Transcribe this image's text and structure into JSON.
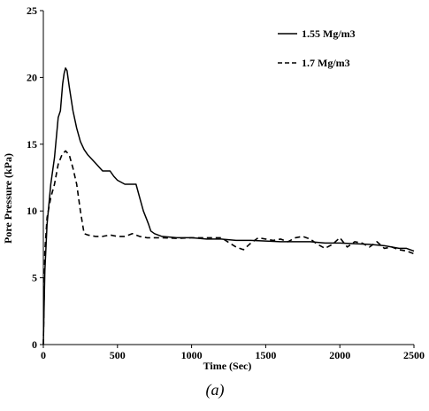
{
  "chart_data": {
    "type": "line",
    "title": "",
    "xlabel": "Time (Sec)",
    "ylabel": "Pore Pressure (kPa)",
    "xlim": [
      0,
      2500
    ],
    "ylim": [
      0,
      25
    ],
    "xticks": [
      0,
      500,
      1000,
      1500,
      2000,
      2500
    ],
    "yticks": [
      0,
      5,
      10,
      15,
      20,
      25
    ],
    "grid": false,
    "legend_position": "top-right",
    "caption": "(a)",
    "series": [
      {
        "name": "1.55 Mg/m3",
        "line_style": "solid",
        "color": "#000000",
        "x": [
          0,
          10,
          25,
          50,
          75,
          100,
          115,
          130,
          140,
          150,
          160,
          175,
          200,
          225,
          250,
          275,
          300,
          350,
          400,
          450,
          475,
          500,
          550,
          600,
          625,
          650,
          675,
          700,
          710,
          725,
          750,
          800,
          850,
          900,
          1000,
          1100,
          1200,
          1300,
          1400,
          1500,
          1600,
          1700,
          1800,
          1900,
          2000,
          2100,
          2200,
          2300,
          2350,
          2400,
          2450,
          2500
        ],
        "y": [
          0,
          5.5,
          9,
          12,
          14,
          17,
          17.5,
          19.5,
          20.3,
          20.7,
          20.5,
          19.3,
          17.5,
          16.2,
          15.2,
          14.6,
          14.2,
          13.6,
          13,
          13,
          12.6,
          12.3,
          12,
          12,
          12,
          11,
          10,
          9.3,
          9,
          8.5,
          8.3,
          8.1,
          8.05,
          8,
          8,
          7.9,
          7.9,
          7.8,
          7.8,
          7.75,
          7.7,
          7.7,
          7.7,
          7.6,
          7.6,
          7.55,
          7.5,
          7.4,
          7.3,
          7.2,
          7.2,
          7
        ]
      },
      {
        "name": "1.7 Mg/m3",
        "line_style": "dashed",
        "color": "#000000",
        "x": [
          0,
          10,
          25,
          50,
          75,
          100,
          125,
          150,
          175,
          200,
          225,
          250,
          275,
          300,
          350,
          400,
          450,
          500,
          550,
          600,
          650,
          700,
          750,
          800,
          900,
          1000,
          1100,
          1200,
          1300,
          1350,
          1400,
          1450,
          1500,
          1550,
          1600,
          1650,
          1700,
          1750,
          1800,
          1850,
          1900,
          1950,
          2000,
          2050,
          2100,
          2150,
          2200,
          2250,
          2300,
          2350,
          2400,
          2450,
          2500
        ],
        "y": [
          0,
          7,
          9.5,
          11,
          12,
          13.5,
          14.2,
          14.5,
          14.2,
          13.2,
          12,
          10,
          8.3,
          8.2,
          8.1,
          8.1,
          8.2,
          8.1,
          8.1,
          8.3,
          8.1,
          8,
          8,
          8,
          7.95,
          8,
          8,
          8,
          7.3,
          7.1,
          7.6,
          8,
          7.9,
          7.8,
          7.9,
          7.7,
          8,
          8.1,
          7.9,
          7.5,
          7.2,
          7.5,
          8,
          7.3,
          7.7,
          7.6,
          7.3,
          7.7,
          7.2,
          7.3,
          7.1,
          7,
          6.8
        ]
      }
    ]
  }
}
